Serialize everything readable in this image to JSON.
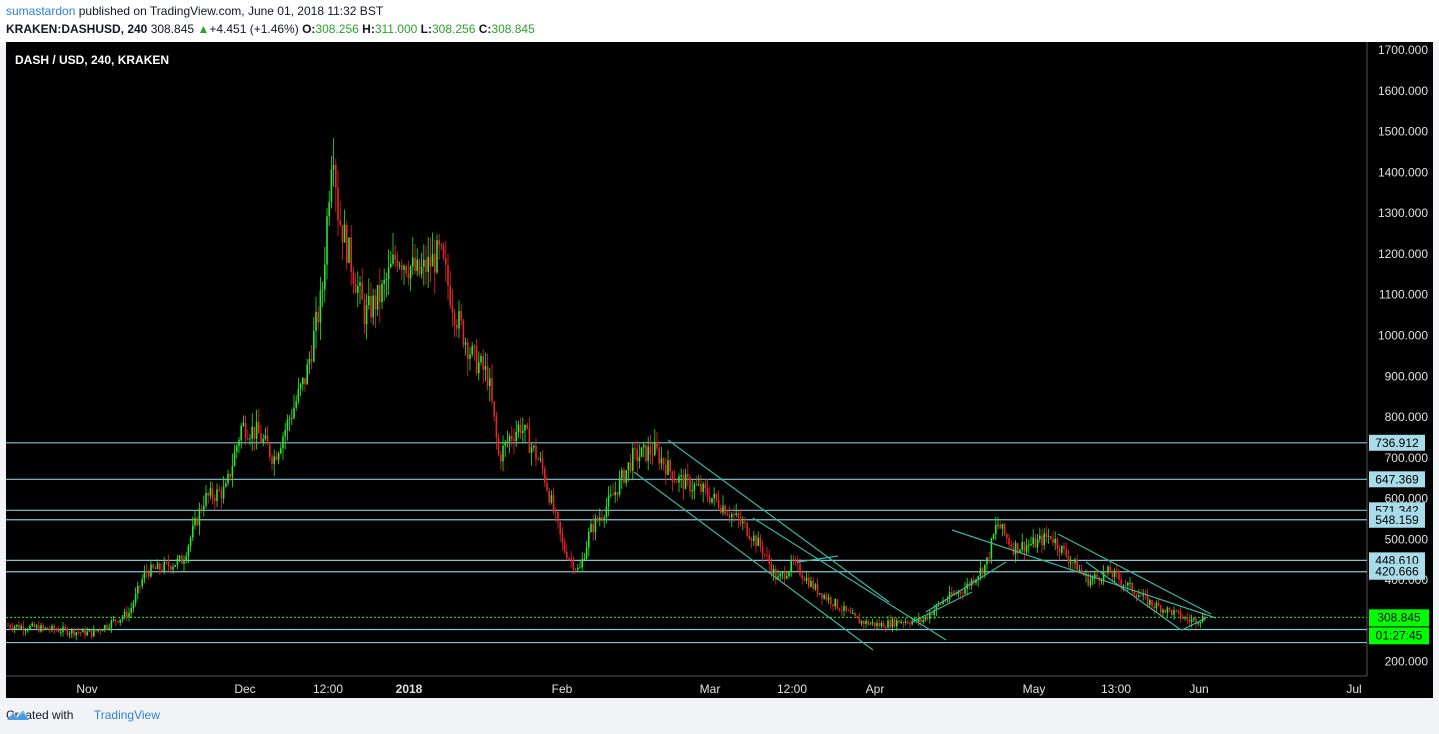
{
  "header": {
    "author": "sumastardon",
    "published": "published on TradingView.com, June 01, 2018 11:32 BST",
    "symbol": "KRAKEN:DASHUSD, 240",
    "last": "308.845",
    "change": "+4.451 (+1.46%)",
    "o_label": "O:",
    "o_value": "308.256",
    "h_label": "H:",
    "h_value": "311.000",
    "l_label": "L:",
    "l_value": "308.256",
    "c_label": "C:",
    "c_value": "308.845"
  },
  "chart_title": "DASH / USD, 240, KRAKEN",
  "footer": {
    "created_with": "Created with",
    "brand": "TradingView"
  },
  "colors": {
    "up": "#2ee62e",
    "down": "#e82626",
    "level_line": "#84c5d8",
    "channel": "#3bb5a0",
    "price_tag": "#00ff00",
    "label_tag": "#a8dce8"
  },
  "chart_data": {
    "type": "line",
    "title": "DASH / USD, 240, KRAKEN",
    "x_ticks": [
      "Nov",
      "Dec",
      "12:00",
      "2018",
      "Feb",
      "Mar",
      "12:00",
      "Apr",
      "May",
      "13:00",
      "Jun",
      "Jul"
    ],
    "y_ticks": [
      "1700.000",
      "1600.000",
      "1500.000",
      "1400.000",
      "1300.000",
      "1200.000",
      "1100.000",
      "1000.000",
      "900.000",
      "800.000",
      "700.000",
      "600.000",
      "500.000",
      "400.000",
      "200.000"
    ],
    "ylim": [
      165,
      1710
    ],
    "horizontal_levels": [
      {
        "value": 736.912,
        "label": "736.912"
      },
      {
        "value": 647.369,
        "label": "647.369"
      },
      {
        "value": 571.342,
        "label": "571.342"
      },
      {
        "value": 548.159,
        "label": "548.159"
      },
      {
        "value": 448.61,
        "label": "448.610"
      },
      {
        "value": 420.666,
        "label": "420.666"
      },
      {
        "value": 279,
        "label": ""
      },
      {
        "value": 247,
        "label": ""
      }
    ],
    "last_price": {
      "value": 308.845,
      "label": "308.845",
      "countdown": "01:27:45"
    },
    "series": [
      {
        "x": [
          "2018-10-20",
          "2018-10-28",
          "2018-11-05",
          "2018-11-12",
          "2018-11-15",
          "2018-11-18",
          "2018-11-22",
          "2018-11-26",
          "2018-11-30",
          "2018-12-03",
          "2018-12-06",
          "2018-12-09",
          "2018-12-12",
          "2018-12-15",
          "2018-12-18",
          "2018-12-20",
          "2018-12-21",
          "2018-12-23",
          "2018-12-26",
          "2018-12-29",
          "2019-01-01",
          "2019-01-05",
          "2019-01-09",
          "2019-01-12",
          "2019-01-15",
          "2019-01-18",
          "2019-01-20",
          "2019-01-22",
          "2019-01-24",
          "2019-01-28",
          "2019-02-01",
          "2019-02-04",
          "2019-02-06",
          "2019-02-10",
          "2019-02-14",
          "2019-02-18",
          "2019-02-22",
          "2019-02-27",
          "2019-03-03",
          "2019-03-07",
          "2019-03-10",
          "2019-03-13",
          "2019-03-16",
          "2019-03-20",
          "2019-03-24",
          "2019-03-28",
          "2019-04-01",
          "2019-04-05",
          "2019-04-09",
          "2019-04-13",
          "2019-04-17",
          "2019-04-21",
          "2019-04-23",
          "2019-04-26",
          "2019-04-30",
          "2019-05-03",
          "2019-05-06",
          "2019-05-10",
          "2019-05-14",
          "2019-05-18",
          "2019-05-22",
          "2019-05-26",
          "2019-05-29",
          "2019-06-01"
        ],
        "y": [
          290,
          280,
          270,
          320,
          420,
          430,
          450,
          600,
          620,
          780,
          760,
          700,
          800,
          900,
          1100,
          1500,
          1300,
          1200,
          1050,
          1100,
          1200,
          1150,
          1200,
          1050,
          950,
          900,
          700,
          750,
          780,
          680,
          480,
          420,
          520,
          600,
          700,
          720,
          650,
          620,
          580,
          530,
          480,
          400,
          440,
          380,
          340,
          300,
          290,
          300,
          300,
          350,
          380,
          440,
          540,
          480,
          490,
          510,
          460,
          400,
          420,
          380,
          340,
          320,
          300,
          308.845
        ]
      }
    ]
  }
}
